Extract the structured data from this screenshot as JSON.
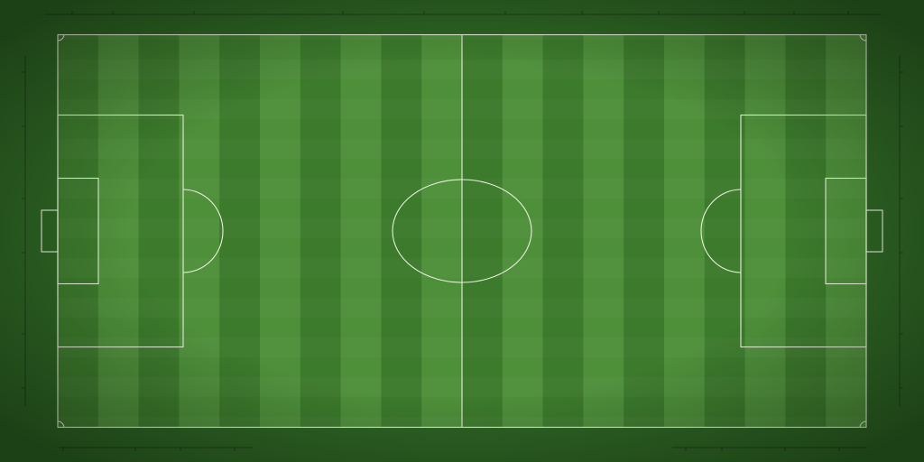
{
  "scene": {
    "type": "soccer-pitch-top-down",
    "stripe_count": 20,
    "goal_count": 2
  },
  "colors": {
    "stripe_dark": "#3c7a2c",
    "stripe_light": "#4e8f3a",
    "outfield": "#2d6423",
    "line": "#e6f0d8",
    "ruler": "#1e3f17"
  }
}
